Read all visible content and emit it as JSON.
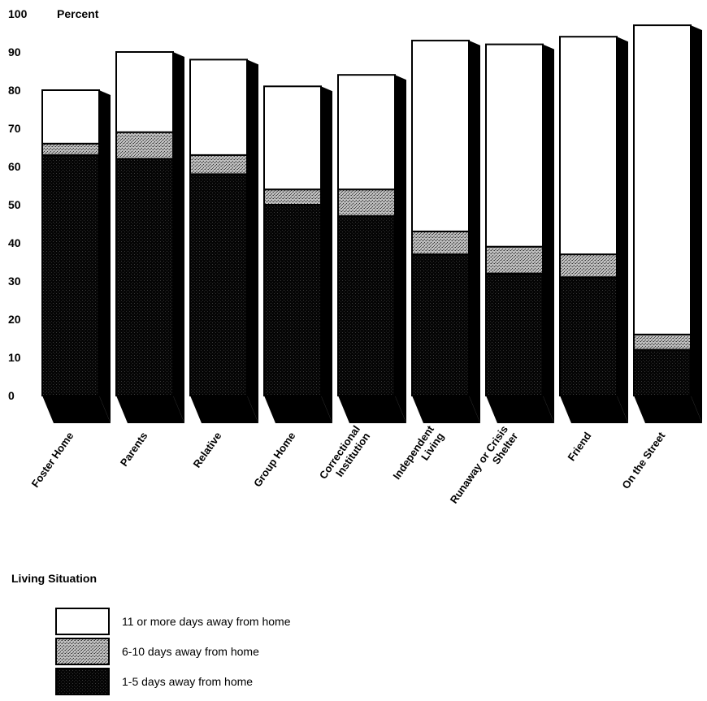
{
  "chart_data": {
    "type": "bar",
    "stacked": true,
    "title": "",
    "ylabel": "Percent",
    "xlabel": "Living Situation",
    "ylim": [
      0,
      100
    ],
    "yticks": [
      0,
      10,
      20,
      30,
      40,
      50,
      60,
      70,
      80,
      90,
      100
    ],
    "grid": false,
    "legend_position": "bottom-left",
    "categories": [
      [
        "Foster Home"
      ],
      [
        "Parents"
      ],
      [
        "Relative"
      ],
      [
        "Group Home"
      ],
      [
        "Correctional",
        "Institution"
      ],
      [
        "Independent",
        "Living"
      ],
      [
        "Runaway or Crisis",
        "Shelter"
      ],
      [
        "Friend"
      ],
      [
        "On the Street"
      ]
    ],
    "series": [
      {
        "name": "1-5 days away from home",
        "key": "short",
        "color": "#111111",
        "values": [
          63,
          62,
          58,
          50,
          47,
          37,
          32,
          31,
          12
        ]
      },
      {
        "name": "6-10 days away from home",
        "key": "mid",
        "color": "#9a9a9a",
        "values": [
          3,
          7,
          5,
          4,
          7,
          6,
          7,
          6,
          4
        ]
      },
      {
        "name": "11 or more days away from home",
        "key": "long",
        "color": "#ffffff",
        "values": [
          14,
          21,
          25,
          27,
          30,
          50,
          53,
          57,
          81
        ]
      }
    ],
    "legend_order": [
      "long",
      "mid",
      "short"
    ]
  }
}
